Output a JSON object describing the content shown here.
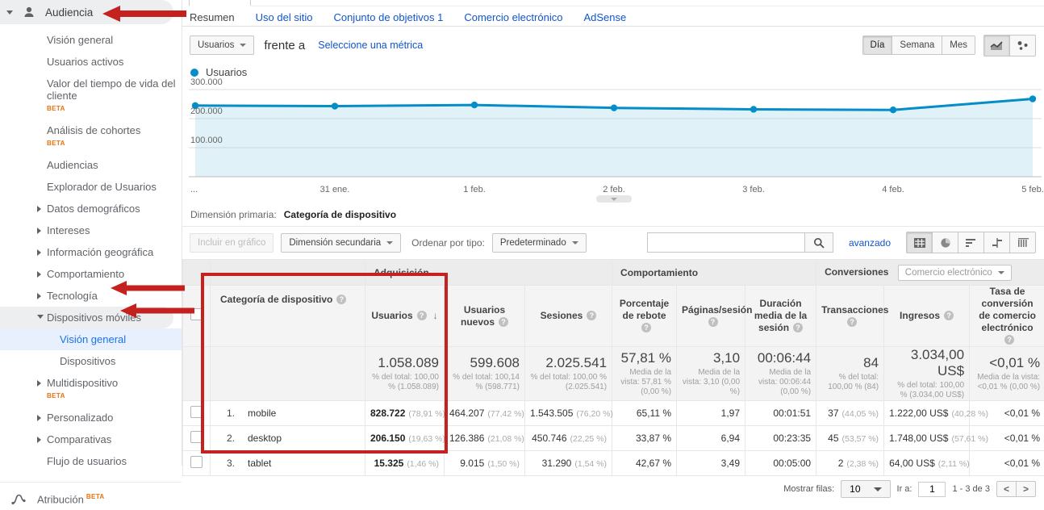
{
  "annotations": {
    "color": "#c5221f"
  },
  "sidebar": {
    "audiencia": {
      "label": "Audiencia"
    },
    "items": [
      {
        "label": "Visión general"
      },
      {
        "label": "Usuarios activos"
      },
      {
        "label": "Valor del tiempo de vida del cliente",
        "beta": "BETA"
      },
      {
        "label": "Análisis de cohortes",
        "beta": "BETA"
      },
      {
        "label": "Audiencias"
      },
      {
        "label": "Explorador de Usuarios"
      },
      {
        "label": "Datos demográficos"
      },
      {
        "label": "Intereses"
      },
      {
        "label": "Información geográfica"
      },
      {
        "label": "Comportamiento"
      },
      {
        "label": "Tecnología"
      },
      {
        "label": "Dispositivos móviles"
      },
      {
        "label": "Visión general"
      },
      {
        "label": "Dispositivos"
      },
      {
        "label": "Multidispositivo",
        "beta": "BETA"
      },
      {
        "label": "Personalizado"
      },
      {
        "label": "Comparativas"
      },
      {
        "label": "Flujo de usuarios"
      }
    ],
    "atribucion": {
      "label": "Atribución",
      "beta": "BETA"
    }
  },
  "tabs": {
    "items": [
      {
        "label": "Resumen"
      },
      {
        "label": "Uso del sitio"
      },
      {
        "label": "Conjunto de objetivos 1"
      },
      {
        "label": "Comercio electrónico"
      },
      {
        "label": "AdSense"
      }
    ]
  },
  "metric_bar": {
    "metric_selector": "Usuarios",
    "vs": "frente a",
    "select_metric": "Seleccione una métrica",
    "granularity": {
      "day": "Día",
      "week": "Semana",
      "month": "Mes"
    }
  },
  "chart_data": {
    "type": "line",
    "title": "Usuarios",
    "x": [
      "...",
      "31 ene.",
      "1 feb.",
      "2 feb.",
      "3 feb.",
      "4 feb.",
      "5 feb."
    ],
    "series": [
      {
        "name": "Usuarios",
        "color": "#058dc7",
        "values": [
          245000,
          243000,
          247000,
          237000,
          232000,
          230000,
          268000
        ]
      }
    ],
    "ylim": [
      0,
      300000
    ],
    "yticks": [
      {
        "value": 100000,
        "label": "100.000"
      },
      {
        "value": 200000,
        "label": "200.000"
      },
      {
        "value": 300000,
        "label": "300.000"
      }
    ],
    "grid": true,
    "legend_position": "top-left"
  },
  "dimension_bar": {
    "primary_label": "Dimensión primaria:",
    "primary_value": "Categoría de dispositivo"
  },
  "toolbar": {
    "plot_rows": "Incluir en gráfico",
    "secondary_dimension": "Dimensión secundaria",
    "sort_by_label": "Ordenar por tipo:",
    "sort_by_value": "Predeterminado",
    "advanced_link": "avanzado"
  },
  "table": {
    "group_headers": {
      "acquisition": "Adquisición",
      "behavior": "Comportamiento",
      "conversions": "Conversiones",
      "conversions_selector": "Comercio electrónico"
    },
    "columns": {
      "category": "Categoría de dispositivo",
      "users": "Usuarios",
      "new_users": "Usuarios nuevos",
      "sessions": "Sesiones",
      "bounce_rate": "Porcentaje de rebote",
      "pages_session": "Páginas/sesión",
      "avg_duration": "Duración media de la sesión",
      "transactions": "Transacciones",
      "revenue": "Ingresos",
      "conv_rate": "Tasa de conversión de comercio electrónico"
    },
    "totals": {
      "users": {
        "value": "1.058.089",
        "note": "% del total: 100,00 % (1.058.089)"
      },
      "new_users": {
        "value": "599.608",
        "note": "% del total: 100,14 % (598.771)"
      },
      "sessions": {
        "value": "2.025.541",
        "note": "% del total: 100,00 % (2.025.541)"
      },
      "bounce": {
        "value": "57,81 %",
        "note": "Media de la vista: 57,81 % (0,00 %)"
      },
      "pages": {
        "value": "3,10",
        "note": "Media de la vista: 3,10 (0,00 %)"
      },
      "duration": {
        "value": "00:06:44",
        "note": "Media de la vista: 00:06:44 (0,00 %)"
      },
      "transactions": {
        "value": "84",
        "note": "% del total: 100,00 % (84)"
      },
      "revenue": {
        "value": "3.034,00 US$",
        "note": "% del total: 100,00 % (3.034,00 US$)"
      },
      "conv": {
        "value": "<0,01 %",
        "note": "Media de la vista: <0,01 % (0,00 %)"
      }
    },
    "rows": [
      {
        "rank": "1.",
        "name": "mobile",
        "users": "828.722",
        "users_pct": "(78,91 %)",
        "new_users": "464.207",
        "new_users_pct": "(77,42 %)",
        "sessions": "1.543.505",
        "sessions_pct": "(76,20 %)",
        "bounce": "65,11 %",
        "pages": "1,97",
        "duration": "00:01:51",
        "transactions": "37",
        "transactions_pct": "(44,05 %)",
        "revenue": "1.222,00 US$",
        "revenue_pct": "(40,28 %)",
        "conv": "<0,01 %"
      },
      {
        "rank": "2.",
        "name": "desktop",
        "users": "206.150",
        "users_pct": "(19,63 %)",
        "new_users": "126.386",
        "new_users_pct": "(21,08 %)",
        "sessions": "450.746",
        "sessions_pct": "(22,25 %)",
        "bounce": "33,87 %",
        "pages": "6,94",
        "duration": "00:23:35",
        "transactions": "45",
        "transactions_pct": "(53,57 %)",
        "revenue": "1.748,00 US$",
        "revenue_pct": "(57,61 %)",
        "conv": "<0,01 %"
      },
      {
        "rank": "3.",
        "name": "tablet",
        "users": "15.325",
        "users_pct": "(1,46 %)",
        "new_users": "9.015",
        "new_users_pct": "(1,50 %)",
        "sessions": "31.290",
        "sessions_pct": "(1,54 %)",
        "bounce": "42,67 %",
        "pages": "3,49",
        "duration": "00:05:00",
        "transactions": "2",
        "transactions_pct": "(2,38 %)",
        "revenue": "64,00 US$",
        "revenue_pct": "(2,11 %)",
        "conv": "<0,01 %"
      }
    ]
  },
  "pagination": {
    "show_rows_label": "Mostrar filas:",
    "rows_value": "10",
    "goto_label": "Ir a:",
    "goto_value": "1",
    "range": "1 - 3 de 3",
    "prev": "<",
    "next": ">"
  }
}
